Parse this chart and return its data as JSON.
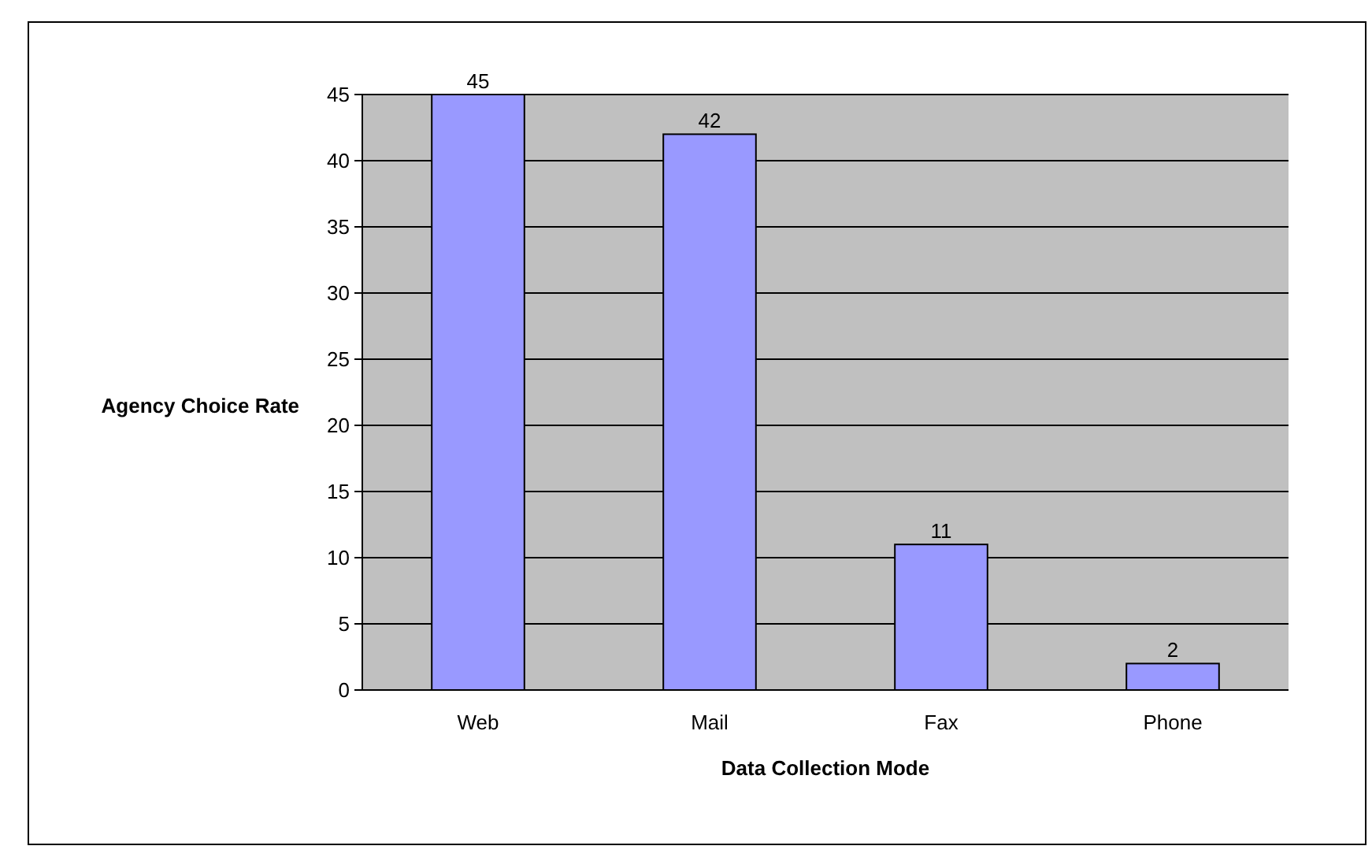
{
  "chart_data": {
    "type": "bar",
    "xlabel": "Data Collection Mode",
    "ylabel": "Agency Choice Rate",
    "categories": [
      "Web",
      "Mail",
      "Fax",
      "Phone"
    ],
    "values": [
      45,
      42,
      11,
      2
    ],
    "color": "#9999ff",
    "ylim": [
      0,
      45
    ],
    "yticks": [
      0,
      5,
      10,
      15,
      20,
      25,
      30,
      35,
      40,
      45
    ],
    "grid": "y",
    "data_labels": true
  }
}
